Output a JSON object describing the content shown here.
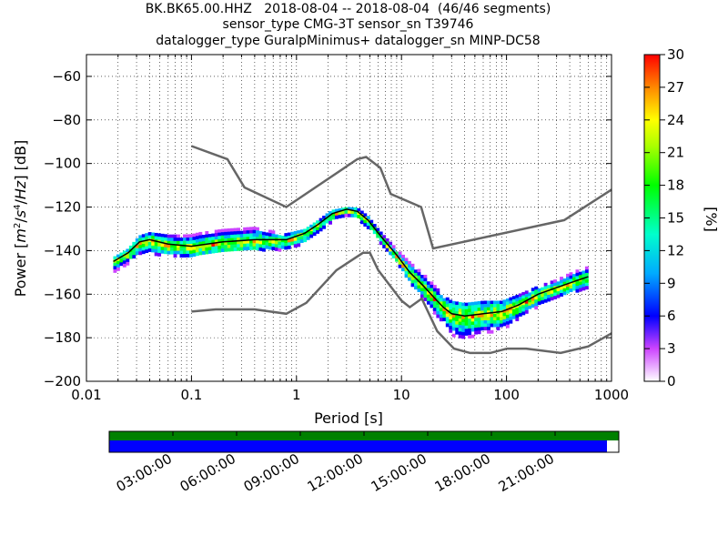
{
  "title": {
    "line1": "BK.BK65.00.HHZ   2018-08-04 -- 2018-08-04  (46/46 segments)",
    "line2": "sensor_type CMG-3T sensor_sn T39746",
    "line3": "datalogger_type GuralpMinimus+ datalogger_sn MINP-DC58"
  },
  "colorbar": {
    "label": "[%]",
    "ticks": [
      "0",
      "3",
      "6",
      "9",
      "12",
      "15",
      "18",
      "21",
      "24",
      "27",
      "30"
    ],
    "range": [
      0,
      30
    ]
  },
  "timeline": {
    "ticks": [
      "03:00:00",
      "06:00:00",
      "09:00:00",
      "12:00:00",
      "15:00:00",
      "18:00:00",
      "21:00:00"
    ],
    "colors": {
      "top": "#008000",
      "bottom": "#0000ff"
    }
  },
  "chart_data": {
    "type": "heatmap",
    "xlabel": "Period [s]",
    "ylabel": "Power [m²/s⁴/Hz] [dB]",
    "xscale": "log",
    "xlim": [
      0.01,
      1000
    ],
    "ylim": [
      -200,
      -50
    ],
    "xticks": [
      {
        "v": 0.01,
        "label": "0.01"
      },
      {
        "v": 0.1,
        "label": "0.1"
      },
      {
        "v": 1,
        "label": "1"
      },
      {
        "v": 10,
        "label": "10"
      },
      {
        "v": 100,
        "label": "100"
      },
      {
        "v": 1000,
        "label": "1000"
      }
    ],
    "yticks": [
      {
        "v": -60,
        "label": "−60"
      },
      {
        "v": -80,
        "label": "−80"
      },
      {
        "v": -100,
        "label": "−100"
      },
      {
        "v": -120,
        "label": "−120"
      },
      {
        "v": -140,
        "label": "−140"
      },
      {
        "v": -160,
        "label": "−160"
      },
      {
        "v": -180,
        "label": "−180"
      },
      {
        "v": -200,
        "label": "−200"
      }
    ],
    "grid": true,
    "colorbar_range_percent": [
      0,
      30
    ],
    "nhnm": [
      [
        0.1,
        -92
      ],
      [
        0.22,
        -98
      ],
      [
        0.32,
        -111
      ],
      [
        0.8,
        -120
      ],
      [
        3.8,
        -98
      ],
      [
        4.6,
        -97
      ],
      [
        6.3,
        -102
      ],
      [
        7.9,
        -114
      ],
      [
        15.4,
        -120
      ],
      [
        20,
        -139
      ],
      [
        354,
        -126
      ],
      [
        1000,
        -112
      ]
    ],
    "nlnm": [
      [
        0.1,
        -168
      ],
      [
        0.17,
        -167
      ],
      [
        0.4,
        -167
      ],
      [
        0.8,
        -169
      ],
      [
        1.24,
        -164
      ],
      [
        2.4,
        -149
      ],
      [
        4.3,
        -141
      ],
      [
        5,
        -141
      ],
      [
        6,
        -149
      ],
      [
        10,
        -163
      ],
      [
        12,
        -166
      ],
      [
        15.6,
        -162
      ],
      [
        21.9,
        -177
      ],
      [
        31.6,
        -185
      ],
      [
        45,
        -187
      ],
      [
        70,
        -187
      ],
      [
        101,
        -185
      ],
      [
        154,
        -185
      ],
      [
        328,
        -187
      ],
      [
        600,
        -184
      ],
      [
        1000,
        -178
      ]
    ],
    "mode": [
      [
        0.018,
        -145
      ],
      [
        0.025,
        -141
      ],
      [
        0.032,
        -136
      ],
      [
        0.04,
        -135
      ],
      [
        0.06,
        -137
      ],
      [
        0.1,
        -138
      ],
      [
        0.2,
        -136
      ],
      [
        0.4,
        -135
      ],
      [
        0.8,
        -135
      ],
      [
        1.2,
        -132
      ],
      [
        1.6,
        -128
      ],
      [
        2.2,
        -123
      ],
      [
        3,
        -121
      ],
      [
        3.8,
        -122
      ],
      [
        4.8,
        -126
      ],
      [
        6.5,
        -134
      ],
      [
        9,
        -142
      ],
      [
        12,
        -150
      ],
      [
        16,
        -156
      ],
      [
        20,
        -161
      ],
      [
        25,
        -166
      ],
      [
        30,
        -169
      ],
      [
        40,
        -170
      ],
      [
        60,
        -169
      ],
      [
        90,
        -168
      ],
      [
        130,
        -165
      ],
      [
        200,
        -160
      ],
      [
        300,
        -157
      ],
      [
        450,
        -154
      ],
      [
        600,
        -152
      ]
    ],
    "spread": [
      [
        0.018,
        2,
        4
      ],
      [
        0.025,
        2,
        4
      ],
      [
        0.032,
        3,
        5
      ],
      [
        0.05,
        4,
        6
      ],
      [
        0.08,
        5,
        5
      ],
      [
        0.12,
        6,
        4
      ],
      [
        0.2,
        6,
        4
      ],
      [
        0.4,
        6,
        4
      ],
      [
        0.8,
        3,
        4
      ],
      [
        1.2,
        2,
        4
      ],
      [
        2,
        2,
        3
      ],
      [
        3,
        1,
        2
      ],
      [
        4,
        2,
        3
      ],
      [
        6,
        2,
        3
      ],
      [
        9,
        3,
        3
      ],
      [
        12,
        5,
        4
      ],
      [
        16,
        6,
        5
      ],
      [
        20,
        6,
        6
      ],
      [
        25,
        6,
        7
      ],
      [
        30,
        6,
        9
      ],
      [
        40,
        6,
        10
      ],
      [
        60,
        6,
        8
      ],
      [
        90,
        5,
        8
      ],
      [
        130,
        5,
        6
      ],
      [
        200,
        4,
        5
      ],
      [
        300,
        4,
        4
      ],
      [
        450,
        5,
        4
      ],
      [
        600,
        5,
        4
      ]
    ]
  }
}
